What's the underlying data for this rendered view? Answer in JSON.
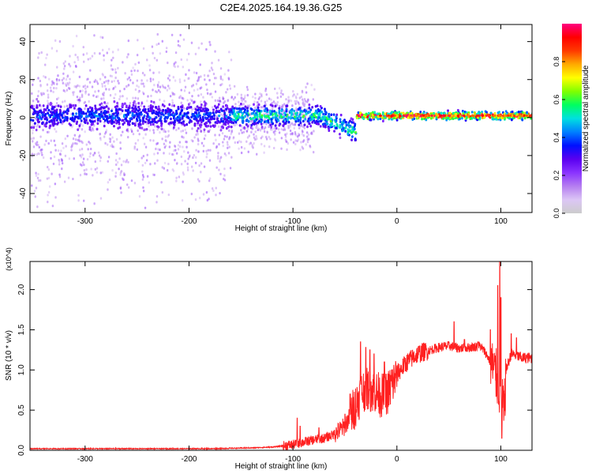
{
  "title": "C2E4.2025.164.19.36.G25",
  "colors": {
    "snr_line": "#ff2020",
    "background": "#ffffff",
    "colormap": [
      "#cccccc",
      "#dcc6f5",
      "#b57ef0",
      "#8a33ff",
      "#5a00f0",
      "#0010ff",
      "#0080ff",
      "#00e0e0",
      "#00ff60",
      "#80ff00",
      "#ffff00",
      "#ffaa00",
      "#ff3a00",
      "#ff0000",
      "#ff0080"
    ]
  },
  "chart_data": [
    {
      "type": "heatmap",
      "xlabel": "Height of straight line (km)",
      "ylabel": "Frequency (Hz)",
      "xlim": [
        -353,
        130
      ],
      "ylim": [
        -50,
        49
      ],
      "xticks": [
        -300,
        -200,
        -100,
        0,
        100
      ],
      "yticks": [
        -40,
        -20,
        0,
        20,
        40
      ],
      "grid": false,
      "ridge": {
        "frequency_hz": 1,
        "segments": [
          {
            "x_from": -353,
            "x_to": -160,
            "half_width_hz": 10,
            "peak_amplitude": 0.35,
            "scatter": "wide (up to ±48 Hz, weak)"
          },
          {
            "x_from": -160,
            "x_to": -40,
            "half_width_hz": 8,
            "peak_amplitude": 0.55,
            "dip_at_x": -40,
            "dip_frequency_hz": -10
          },
          {
            "x_from": -40,
            "x_to": 130,
            "half_width_hz": 3,
            "peak_amplitude": 1.0
          }
        ]
      },
      "colorbar": {
        "label": "Normalized spectral amplitude",
        "range": [
          0,
          1
        ],
        "ticks": [
          "0.0",
          "0.2",
          "0.4",
          "0.6",
          "0.8"
        ]
      }
    },
    {
      "type": "line",
      "xlabel": "Height of straight line (km)",
      "ylabel": "SNR (10 * v/v)",
      "y_multiplier": "(x10^4)",
      "xlim": [
        -353,
        130
      ],
      "ylim": [
        0,
        2.35
      ],
      "xticks": [
        -300,
        -200,
        -100,
        0,
        100
      ],
      "yticks": [
        "0.0",
        "0.5",
        "1.0",
        "1.5",
        "2.0"
      ],
      "grid": false,
      "series": [
        {
          "x": [
            -353,
            -300,
            -250,
            -200,
            -180,
            -160,
            -140,
            -120,
            -100,
            -90,
            -80,
            -70,
            -60,
            -50,
            -40,
            -35,
            -30,
            -25,
            -20,
            -15,
            -10,
            -5,
            0,
            10,
            20,
            30,
            40,
            50,
            60,
            70,
            80,
            85,
            90,
            95,
            100,
            103,
            105,
            110,
            115,
            120,
            125,
            130
          ],
          "y": [
            0.02,
            0.02,
            0.02,
            0.02,
            0.02,
            0.025,
            0.03,
            0.04,
            0.07,
            0.1,
            0.13,
            0.15,
            0.2,
            0.3,
            0.55,
            0.7,
            0.78,
            0.75,
            0.72,
            0.68,
            0.7,
            0.8,
            0.95,
            1.1,
            1.2,
            1.24,
            1.28,
            1.3,
            1.27,
            1.28,
            1.3,
            1.22,
            1.1,
            0.95,
            0.7,
            0.4,
            1.0,
            1.2,
            1.18,
            1.15,
            1.15,
            1.15
          ],
          "spikes": [
            [
              -96,
              0.4
            ],
            [
              -93,
              0.3
            ],
            [
              -75,
              0.28
            ],
            [
              -60,
              0.25
            ],
            [
              -50,
              0.45
            ],
            [
              -45,
              0.7
            ],
            [
              -35,
              1.35
            ],
            [
              -30,
              1.28
            ],
            [
              -26,
              1.25
            ],
            [
              -22,
              1.2
            ],
            [
              -12,
              1.1
            ],
            [
              -5,
              1.0
            ],
            [
              55,
              1.6
            ],
            [
              65,
              1.38
            ],
            [
              78,
              1.35
            ],
            [
              90,
              1.5
            ],
            [
              93,
              1.0
            ],
            [
              97,
              2.05
            ],
            [
              99,
              2.35
            ],
            [
              100,
              1.9
            ],
            [
              101,
              0.15
            ],
            [
              102,
              0.8
            ],
            [
              110,
              1.45
            ],
            [
              115,
              1.4
            ]
          ]
        }
      ]
    }
  ]
}
